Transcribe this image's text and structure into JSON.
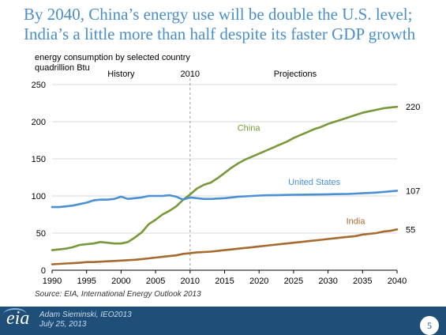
{
  "slide": {
    "title_line1": "By 2040, China’s energy use will be double the U.S. level;",
    "title_line2": "India’s a little more than half despite its faster GDP growth",
    "source": "Source:  EIA, International Energy Outlook 2013",
    "presenter": "Adam Sieminski, IEO2013",
    "date": "July 25, 2013",
    "page_number": "5",
    "logo_text": "eia"
  },
  "colors": {
    "china": "#77993a",
    "us": "#4a90d2",
    "india": "#a66a2f",
    "title": "#4a8fc8",
    "footer": "#1f4e79"
  },
  "chart_data": {
    "type": "line",
    "title": "energy consumption by selected country",
    "ylabel": "quadrillion Btu",
    "xlim": [
      1990,
      2040
    ],
    "ylim": [
      0,
      250
    ],
    "xticks": [
      1990,
      1995,
      2000,
      2005,
      2010,
      2015,
      2020,
      2025,
      2030,
      2035,
      2040
    ],
    "yticks": [
      0,
      50,
      100,
      150,
      200,
      250
    ],
    "grid": "horizontal",
    "divider_x": 2010,
    "section_labels": {
      "history": "History",
      "divider": "2010",
      "projections": "Projections"
    },
    "series": [
      {
        "name": "China",
        "color": "#77993a",
        "end_label": "220",
        "x": [
          1990,
          1991,
          1992,
          1993,
          1994,
          1995,
          1996,
          1997,
          1998,
          1999,
          2000,
          2001,
          2002,
          2003,
          2004,
          2005,
          2006,
          2007,
          2008,
          2009,
          2010,
          2011,
          2012,
          2013,
          2014,
          2015,
          2016,
          2017,
          2018,
          2019,
          2020,
          2021,
          2022,
          2023,
          2024,
          2025,
          2026,
          2027,
          2028,
          2029,
          2030,
          2031,
          2032,
          2033,
          2034,
          2035,
          2036,
          2037,
          2038,
          2039,
          2040
        ],
        "values": [
          27,
          28,
          29,
          31,
          34,
          35,
          36,
          38,
          37,
          36,
          36,
          38,
          44,
          51,
          62,
          68,
          75,
          80,
          86,
          95,
          102,
          110,
          115,
          118,
          124,
          131,
          138,
          144,
          149,
          153,
          157,
          161,
          165,
          169,
          173,
          178,
          182,
          186,
          190,
          193,
          197,
          200,
          203,
          206,
          209,
          212,
          214,
          216,
          218,
          219,
          220
        ]
      },
      {
        "name": "United States",
        "color": "#4a90d2",
        "end_label": "107",
        "x": [
          1990,
          1991,
          1992,
          1993,
          1994,
          1995,
          1996,
          1997,
          1998,
          1999,
          2000,
          2001,
          2002,
          2003,
          2004,
          2005,
          2006,
          2007,
          2008,
          2009,
          2010,
          2011,
          2012,
          2013,
          2014,
          2015,
          2016,
          2017,
          2018,
          2019,
          2020,
          2021,
          2022,
          2023,
          2024,
          2025,
          2026,
          2027,
          2028,
          2029,
          2030,
          2031,
          2032,
          2033,
          2034,
          2035,
          2036,
          2037,
          2038,
          2039,
          2040
        ],
        "values": [
          85,
          85,
          86,
          87,
          89,
          91,
          94,
          95,
          95,
          96,
          99,
          96,
          97,
          98,
          100,
          100,
          100,
          101,
          99,
          95,
          98,
          97,
          96,
          96,
          96.5,
          97,
          98,
          99,
          99.5,
          100,
          100.5,
          100.8,
          101,
          101.2,
          101.4,
          101.6,
          101.7,
          101.8,
          101.9,
          102,
          102.2,
          102.4,
          102.6,
          102.8,
          103.2,
          103.6,
          104,
          104.6,
          105.3,
          106.2,
          107
        ]
      },
      {
        "name": "India",
        "color": "#a66a2f",
        "end_label": "55",
        "x": [
          1990,
          1991,
          1992,
          1993,
          1994,
          1995,
          1996,
          1997,
          1998,
          1999,
          2000,
          2001,
          2002,
          2003,
          2004,
          2005,
          2006,
          2007,
          2008,
          2009,
          2010,
          2011,
          2012,
          2013,
          2014,
          2015,
          2016,
          2017,
          2018,
          2019,
          2020,
          2021,
          2022,
          2023,
          2024,
          2025,
          2026,
          2027,
          2028,
          2029,
          2030,
          2031,
          2032,
          2033,
          2034,
          2035,
          2036,
          2037,
          2038,
          2039,
          2040
        ],
        "values": [
          8,
          8.5,
          9,
          9.5,
          10,
          11,
          11,
          11.5,
          12,
          12.5,
          13,
          13.5,
          14,
          15,
          16,
          17,
          18,
          19,
          20,
          22,
          23,
          24,
          24.5,
          25,
          26,
          27,
          28,
          29,
          30,
          31,
          32,
          33,
          34,
          35,
          36,
          37,
          38,
          39,
          40,
          41,
          42,
          43,
          44,
          45,
          46,
          48,
          49,
          50,
          52,
          53,
          55
        ]
      }
    ]
  }
}
